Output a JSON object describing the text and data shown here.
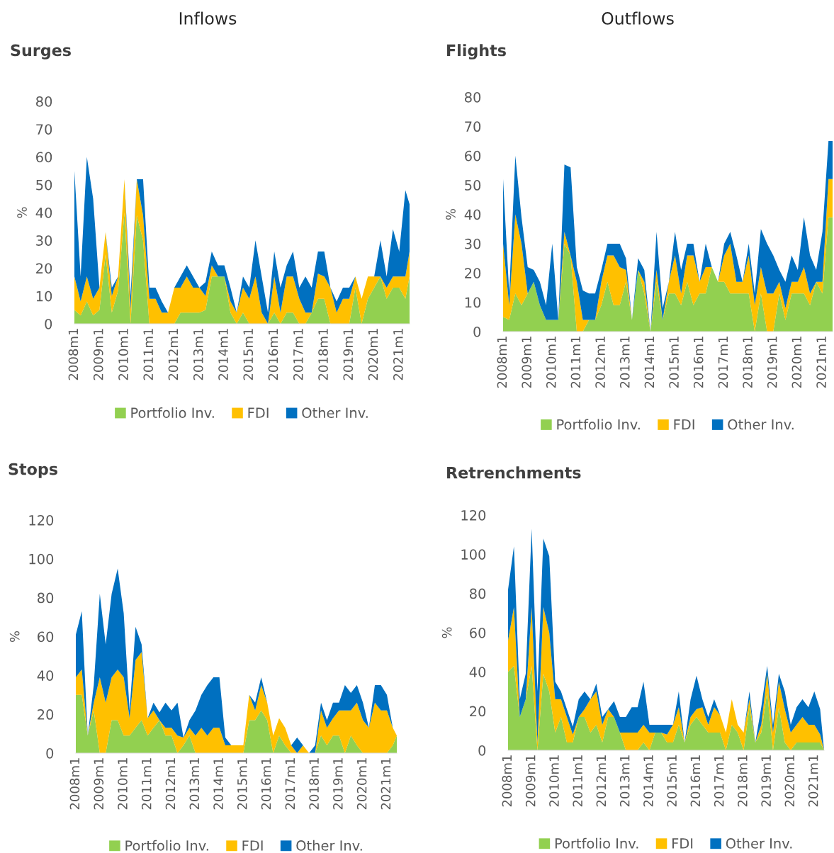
{
  "chart_data": [
    {
      "type": "area",
      "title": "Surges",
      "ylabel": "%",
      "annotations": [
        "Inflows"
      ],
      "stacked": true,
      "legend": "bottom",
      "grid": false,
      "x": [
        "2008-01",
        "2008-04",
        "2008-07",
        "2008-10",
        "2009-01",
        "2009-04",
        "2009-07",
        "2009-10",
        "2010-01",
        "2010-04",
        "2010-07",
        "2010-10",
        "2011-01",
        "2011-04",
        "2011-07",
        "2011-10",
        "2012-01",
        "2012-04",
        "2012-07",
        "2012-10",
        "2013-01",
        "2013-04",
        "2013-07",
        "2013-10",
        "2014-01",
        "2014-04",
        "2014-07",
        "2014-10",
        "2015-01",
        "2015-04",
        "2015-07",
        "2015-10",
        "2016-01",
        "2016-04",
        "2016-07",
        "2016-10",
        "2017-01",
        "2017-04",
        "2017-07",
        "2017-10",
        "2018-01",
        "2018-04",
        "2018-07",
        "2018-10",
        "2019-01",
        "2019-04",
        "2019-07",
        "2019-10",
        "2020-01",
        "2020-04",
        "2020-07",
        "2020-10",
        "2021-01",
        "2021-04",
        "2021-06"
      ],
      "xlim": [
        "2008-01",
        "2021-06"
      ],
      "xticks": [
        {
          "value": "2008-01",
          "label": "2008m1"
        },
        {
          "value": "2009-01",
          "label": "2009m1"
        },
        {
          "value": "2010-01",
          "label": "2010m1"
        },
        {
          "value": "2011-01",
          "label": "2011m1"
        },
        {
          "value": "2012-01",
          "label": "2012m1"
        },
        {
          "value": "2013-01",
          "label": "2013m1"
        },
        {
          "value": "2014-01",
          "label": "2014m1"
        },
        {
          "value": "2015-01",
          "label": "2015m1"
        },
        {
          "value": "2016-01",
          "label": "2016m1"
        },
        {
          "value": "2017-01",
          "label": "2017m1"
        },
        {
          "value": "2018-01",
          "label": "2018m1"
        },
        {
          "value": "2019-01",
          "label": "2019m1"
        },
        {
          "value": "2020-01",
          "label": "2020m1"
        },
        {
          "value": "2021-01",
          "label": "2021m1"
        }
      ],
      "ylim": [
        0,
        80
      ],
      "yticks": [
        0,
        10,
        20,
        30,
        40,
        50,
        60,
        70,
        80
      ],
      "series": [
        {
          "name": "Portfolio Inv.",
          "color": "#92d050",
          "values": [
            5,
            3,
            8,
            3,
            5,
            25,
            4,
            12,
            40,
            0,
            39,
            30,
            0,
            0,
            0,
            0,
            0,
            4,
            4,
            4,
            4,
            5,
            17,
            17,
            17,
            4,
            0,
            4,
            0,
            0,
            0,
            0,
            4,
            0,
            4,
            4,
            0,
            0,
            4,
            9,
            9,
            0,
            0,
            0,
            0,
            13,
            0,
            9,
            13,
            17,
            9,
            13,
            13,
            9,
            17
          ]
        },
        {
          "name": "FDI",
          "color": "#ffc000",
          "values": [
            12,
            5,
            9,
            6,
            8,
            8,
            6,
            5,
            12,
            5,
            13,
            9,
            9,
            9,
            4,
            4,
            13,
            9,
            13,
            9,
            9,
            5,
            4,
            0,
            0,
            4,
            4,
            9,
            9,
            17,
            4,
            0,
            13,
            4,
            13,
            13,
            9,
            4,
            0,
            9,
            8,
            13,
            4,
            9,
            9,
            4,
            9,
            8,
            4,
            0,
            4,
            4,
            4,
            8,
            9
          ]
        },
        {
          "name": "Other Inv.",
          "color": "#0070c0",
          "values": [
            38,
            9,
            43,
            36,
            0,
            0,
            3,
            0,
            0,
            5,
            0,
            13,
            4,
            4,
            4,
            0,
            0,
            4,
            4,
            4,
            0,
            5,
            5,
            4,
            4,
            5,
            0,
            4,
            4,
            13,
            13,
            4,
            9,
            9,
            4,
            9,
            4,
            13,
            9,
            8,
            9,
            0,
            4,
            4,
            4,
            0,
            0,
            0,
            0,
            13,
            4,
            17,
            9,
            31,
            17
          ]
        }
      ]
    },
    {
      "type": "area",
      "title": "Flights",
      "ylabel": "%",
      "annotations": [
        "Outflows"
      ],
      "stacked": true,
      "legend": "bottom",
      "grid": false,
      "x": [
        "2008-01",
        "2008-04",
        "2008-07",
        "2008-10",
        "2009-01",
        "2009-04",
        "2009-07",
        "2009-10",
        "2010-01",
        "2010-04",
        "2010-07",
        "2010-10",
        "2011-01",
        "2011-04",
        "2011-07",
        "2011-10",
        "2012-01",
        "2012-04",
        "2012-07",
        "2012-10",
        "2013-01",
        "2013-04",
        "2013-07",
        "2013-10",
        "2014-01",
        "2014-04",
        "2014-07",
        "2014-10",
        "2015-01",
        "2015-04",
        "2015-07",
        "2015-10",
        "2016-01",
        "2016-04",
        "2016-07",
        "2016-10",
        "2017-01",
        "2017-04",
        "2017-07",
        "2017-10",
        "2018-01",
        "2018-04",
        "2018-07",
        "2018-10",
        "2019-01",
        "2019-04",
        "2019-07",
        "2019-10",
        "2020-01",
        "2020-04",
        "2020-07",
        "2020-10",
        "2021-01",
        "2021-04",
        "2021-06"
      ],
      "xlim": [
        "2008-01",
        "2021-06"
      ],
      "xticks": [
        {
          "value": "2008-01",
          "label": "2008m1"
        },
        {
          "value": "2009-01",
          "label": "2009m1"
        },
        {
          "value": "2010-01",
          "label": "2010m1"
        },
        {
          "value": "2011-01",
          "label": "2011m1"
        },
        {
          "value": "2012-01",
          "label": "2012m1"
        },
        {
          "value": "2013-01",
          "label": "2013m1"
        },
        {
          "value": "2014-01",
          "label": "2014m1"
        },
        {
          "value": "2015-01",
          "label": "2015m1"
        },
        {
          "value": "2016-01",
          "label": "2016m1"
        },
        {
          "value": "2017-01",
          "label": "2017m1"
        },
        {
          "value": "2018-01",
          "label": "2018m1"
        },
        {
          "value": "2019-01",
          "label": "2019m1"
        },
        {
          "value": "2020-01",
          "label": "2020m1"
        },
        {
          "value": "2021-01",
          "label": "2021m1"
        }
      ],
      "ylim": [
        0,
        80
      ],
      "yticks": [
        0,
        10,
        20,
        30,
        40,
        50,
        60,
        70,
        80
      ],
      "series": [
        {
          "name": "Portfolio Inv.",
          "color": "#92d050",
          "values": [
            5,
            4,
            13,
            9,
            13,
            17,
            9,
            4,
            4,
            4,
            30,
            26,
            0,
            0,
            4,
            4,
            9,
            17,
            9,
            9,
            17,
            4,
            21,
            13,
            0,
            17,
            4,
            13,
            13,
            9,
            17,
            9,
            13,
            13,
            22,
            17,
            17,
            13,
            13,
            13,
            13,
            0,
            13,
            0,
            0,
            13,
            4,
            13,
            13,
            13,
            9,
            17,
            13,
            39,
            39
          ]
        },
        {
          "name": "FDI",
          "color": "#ffc000",
          "values": [
            25,
            5,
            27,
            21,
            0,
            0,
            0,
            0,
            0,
            0,
            4,
            0,
            17,
            4,
            0,
            0,
            8,
            9,
            17,
            13,
            4,
            0,
            0,
            4,
            0,
            4,
            0,
            4,
            13,
            4,
            9,
            17,
            4,
            9,
            0,
            0,
            9,
            17,
            4,
            4,
            13,
            9,
            9,
            13,
            13,
            4,
            4,
            4,
            4,
            9,
            4,
            0,
            4,
            13,
            13
          ]
        },
        {
          "name": "Other Inv.",
          "color": "#0070c0",
          "values": [
            22,
            4,
            20,
            9,
            9,
            4,
            8,
            5,
            26,
            0,
            23,
            30,
            5,
            10,
            9,
            9,
            4,
            4,
            4,
            8,
            4,
            0,
            4,
            4,
            0,
            13,
            4,
            0,
            8,
            8,
            4,
            4,
            0,
            8,
            0,
            0,
            4,
            4,
            9,
            0,
            4,
            4,
            13,
            17,
            13,
            4,
            9,
            9,
            4,
            17,
            13,
            4,
            17,
            13,
            13
          ]
        }
      ]
    },
    {
      "type": "area",
      "title": "Stops",
      "ylabel": "%",
      "stacked": true,
      "legend": "bottom",
      "grid": false,
      "x": [
        "2008-01",
        "2008-04",
        "2008-07",
        "2008-10",
        "2009-01",
        "2009-04",
        "2009-07",
        "2009-10",
        "2010-01",
        "2010-04",
        "2010-07",
        "2010-10",
        "2011-01",
        "2011-04",
        "2011-07",
        "2011-10",
        "2012-01",
        "2012-04",
        "2012-07",
        "2012-10",
        "2013-01",
        "2013-04",
        "2013-07",
        "2013-10",
        "2014-01",
        "2014-04",
        "2014-07",
        "2014-10",
        "2015-01",
        "2015-04",
        "2015-07",
        "2015-10",
        "2016-01",
        "2016-04",
        "2016-07",
        "2016-10",
        "2017-01",
        "2017-04",
        "2017-07",
        "2017-10",
        "2018-01",
        "2018-04",
        "2018-07",
        "2018-10",
        "2019-01",
        "2019-04",
        "2019-07",
        "2019-10",
        "2020-01",
        "2020-04",
        "2020-07",
        "2020-10",
        "2021-01",
        "2021-04",
        "2021-06"
      ],
      "xlim": [
        "2008-01",
        "2021-06"
      ],
      "xticks": [
        {
          "value": "2008-01",
          "label": "2008m1"
        },
        {
          "value": "2009-01",
          "label": "2009m1"
        },
        {
          "value": "2010-01",
          "label": "2010m1"
        },
        {
          "value": "2011-01",
          "label": "2011m1"
        },
        {
          "value": "2012-01",
          "label": "2012m1"
        },
        {
          "value": "2013-01",
          "label": "2013m1"
        },
        {
          "value": "2014-01",
          "label": "2014m1"
        },
        {
          "value": "2015-01",
          "label": "2015m1"
        },
        {
          "value": "2016-01",
          "label": "2016m1"
        },
        {
          "value": "2017-01",
          "label": "2017m1"
        },
        {
          "value": "2018-01",
          "label": "2018m1"
        },
        {
          "value": "2019-01",
          "label": "2019m1"
        },
        {
          "value": "2020-01",
          "label": "2020m1"
        },
        {
          "value": "2021-01",
          "label": "2021m1"
        }
      ],
      "ylim": [
        0,
        120
      ],
      "yticks": [
        0,
        20,
        40,
        60,
        80,
        100,
        120
      ],
      "series": [
        {
          "name": "Portfolio Inv.",
          "color": "#92d050",
          "values": [
            30,
            30,
            9,
            22,
            0,
            0,
            17,
            17,
            9,
            9,
            13,
            17,
            9,
            13,
            17,
            9,
            9,
            0,
            4,
            9,
            0,
            0,
            0,
            0,
            0,
            0,
            0,
            0,
            0,
            17,
            17,
            22,
            17,
            0,
            9,
            4,
            0,
            0,
            0,
            0,
            0,
            9,
            4,
            9,
            9,
            0,
            9,
            4,
            0,
            0,
            0,
            0,
            0,
            4,
            9
          ]
        },
        {
          "name": "FDI",
          "color": "#ffc000",
          "values": [
            9,
            13,
            0,
            4,
            39,
            26,
            22,
            26,
            30,
            9,
            35,
            35,
            9,
            9,
            0,
            4,
            4,
            9,
            4,
            4,
            9,
            13,
            9,
            13,
            13,
            4,
            4,
            4,
            4,
            13,
            5,
            13,
            9,
            9,
            9,
            9,
            4,
            0,
            4,
            0,
            0,
            13,
            9,
            9,
            13,
            22,
            13,
            22,
            17,
            13,
            26,
            22,
            22,
            9,
            0
          ]
        },
        {
          "name": "Other Inv.",
          "color": "#0070c0",
          "values": [
            22,
            30,
            0,
            9,
            43,
            30,
            43,
            52,
            33,
            4,
            17,
            4,
            0,
            4,
            4,
            13,
            9,
            17,
            0,
            4,
            13,
            17,
            26,
            26,
            26,
            4,
            0,
            0,
            0,
            0,
            4,
            4,
            0,
            0,
            0,
            0,
            0,
            8,
            0,
            0,
            4,
            4,
            4,
            8,
            4,
            13,
            9,
            9,
            9,
            0,
            9,
            13,
            8,
            0,
            0
          ]
        }
      ]
    },
    {
      "type": "area",
      "title": "Retrenchments",
      "ylabel": "%",
      "stacked": true,
      "legend": "bottom",
      "grid": false,
      "x": [
        "2008-01",
        "2008-04",
        "2008-07",
        "2008-10",
        "2009-01",
        "2009-04",
        "2009-07",
        "2009-10",
        "2010-01",
        "2010-04",
        "2010-07",
        "2010-10",
        "2011-01",
        "2011-04",
        "2011-07",
        "2011-10",
        "2012-01",
        "2012-04",
        "2012-07",
        "2012-10",
        "2013-01",
        "2013-04",
        "2013-07",
        "2013-10",
        "2014-01",
        "2014-04",
        "2014-07",
        "2014-10",
        "2015-01",
        "2015-04",
        "2015-07",
        "2015-10",
        "2016-01",
        "2016-04",
        "2016-07",
        "2016-10",
        "2017-01",
        "2017-04",
        "2017-07",
        "2017-10",
        "2018-01",
        "2018-04",
        "2018-07",
        "2018-10",
        "2019-01",
        "2019-04",
        "2019-07",
        "2019-10",
        "2020-01",
        "2020-04",
        "2020-07",
        "2020-10",
        "2021-01",
        "2021-04",
        "2021-06"
      ],
      "xlim": [
        "2008-01",
        "2021-06"
      ],
      "xticks": [
        {
          "value": "2008-01",
          "label": "2008m1"
        },
        {
          "value": "2009-01",
          "label": "2009m1"
        },
        {
          "value": "2010-01",
          "label": "2010m1"
        },
        {
          "value": "2011-01",
          "label": "2011m1"
        },
        {
          "value": "2012-01",
          "label": "2012m1"
        },
        {
          "value": "2013-01",
          "label": "2013m1"
        },
        {
          "value": "2014-01",
          "label": "2014m1"
        },
        {
          "value": "2015-01",
          "label": "2015m1"
        },
        {
          "value": "2016-01",
          "label": "2016m1"
        },
        {
          "value": "2017-01",
          "label": "2017m1"
        },
        {
          "value": "2018-01",
          "label": "2018m1"
        },
        {
          "value": "2019-01",
          "label": "2019m1"
        },
        {
          "value": "2020-01",
          "label": "2020m1"
        },
        {
          "value": "2021-01",
          "label": "2021m1"
        }
      ],
      "ylim": [
        0,
        120
      ],
      "yticks": [
        0,
        20,
        40,
        60,
        80,
        100,
        120
      ],
      "series": [
        {
          "name": "Portfolio Inv.",
          "color": "#92d050",
          "values": [
            40,
            43,
            17,
            26,
            43,
            0,
            39,
            30,
            9,
            17,
            4,
            4,
            17,
            17,
            9,
            13,
            4,
            17,
            17,
            9,
            0,
            0,
            0,
            4,
            0,
            9,
            9,
            4,
            4,
            13,
            4,
            13,
            17,
            13,
            9,
            9,
            9,
            0,
            13,
            9,
            0,
            22,
            4,
            9,
            30,
            0,
            22,
            4,
            0,
            4,
            4,
            4,
            4,
            4,
            0
          ]
        },
        {
          "name": "FDI",
          "color": "#ffc000",
          "values": [
            16,
            30,
            0,
            0,
            30,
            4,
            34,
            30,
            17,
            9,
            13,
            4,
            0,
            4,
            17,
            17,
            9,
            4,
            0,
            0,
            9,
            9,
            9,
            9,
            9,
            0,
            0,
            4,
            9,
            9,
            0,
            4,
            4,
            9,
            4,
            13,
            9,
            9,
            13,
            4,
            9,
            4,
            0,
            4,
            9,
            9,
            13,
            17,
            9,
            9,
            13,
            9,
            9,
            4,
            0
          ]
        },
        {
          "name": "Other Inv.",
          "color": "#0070c0",
          "values": [
            26,
            31,
            9,
            13,
            40,
            26,
            35,
            39,
            9,
            4,
            4,
            4,
            9,
            9,
            0,
            4,
            4,
            0,
            8,
            8,
            8,
            13,
            13,
            22,
            4,
            4,
            4,
            5,
            0,
            8,
            0,
            9,
            17,
            4,
            4,
            4,
            0,
            0,
            0,
            0,
            0,
            4,
            0,
            9,
            4,
            4,
            4,
            9,
            4,
            9,
            9,
            9,
            17,
            13,
            0
          ]
        }
      ]
    }
  ]
}
